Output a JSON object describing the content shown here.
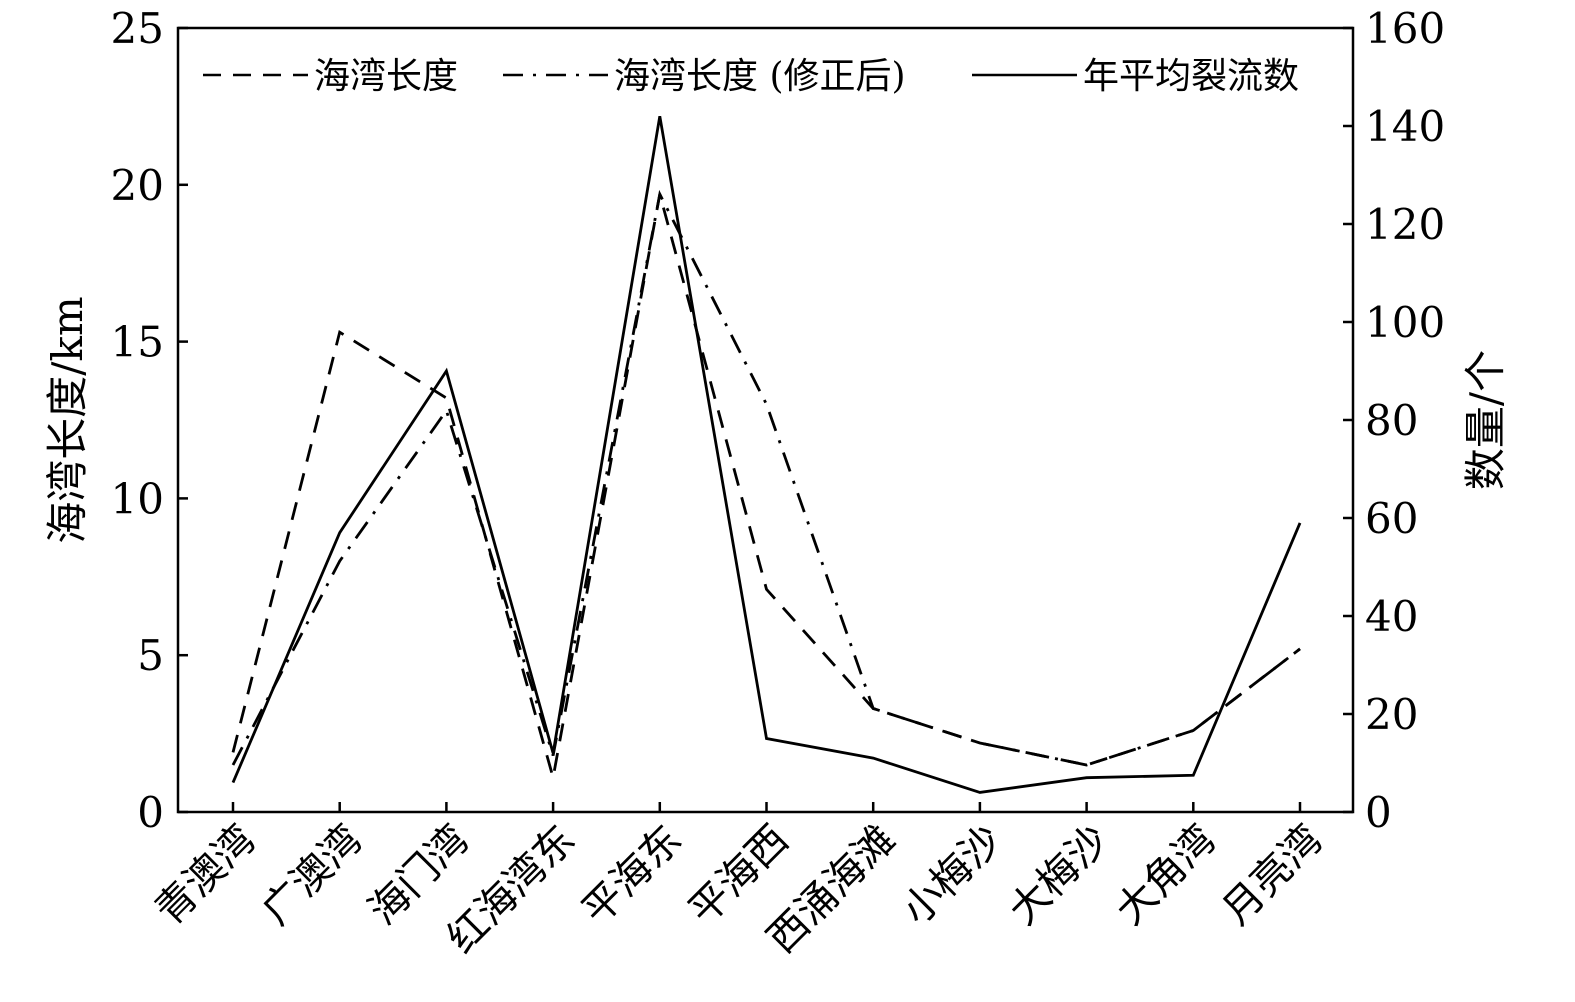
{
  "chart_data": {
    "type": "line",
    "categories": [
      "青澳湾",
      "广澳湾",
      "海门湾",
      "红海湾东",
      "平海东",
      "平海西",
      "西涌海滩",
      "小梅沙",
      "大梅沙",
      "大角湾",
      "月亮湾"
    ],
    "y_left": {
      "label": "海湾长度/km",
      "min": 0,
      "max": 25,
      "ticks": [
        0,
        5,
        10,
        15,
        20,
        25
      ]
    },
    "y_right": {
      "label": "数量/个",
      "min": 0,
      "max": 160,
      "ticks": [
        0,
        20,
        40,
        60,
        80,
        100,
        120,
        140,
        160
      ]
    },
    "series": [
      {
        "name": "海湾长度",
        "axis": "left",
        "style": "dashed",
        "color": "#000000",
        "values": [
          1.9,
          15.3,
          13.2,
          1.1,
          19.7,
          7.1,
          3.3,
          2.2,
          1.5,
          2.6,
          5.2
        ]
      },
      {
        "name": "海湾长度 (修正后)",
        "axis": "left",
        "style": "dashdot",
        "color": "#000000",
        "values": [
          1.5,
          8.0,
          12.8,
          1.8,
          19.7,
          13.0,
          3.3,
          2.2,
          1.5,
          2.6,
          5.2
        ]
      },
      {
        "name": "年平均裂流数",
        "axis": "right",
        "style": "solid",
        "color": "#000000",
        "values": [
          6,
          57,
          90,
          12,
          142,
          15,
          11,
          4,
          7,
          7.5,
          59
        ]
      }
    ],
    "legend_position": "top",
    "grid": false
  }
}
